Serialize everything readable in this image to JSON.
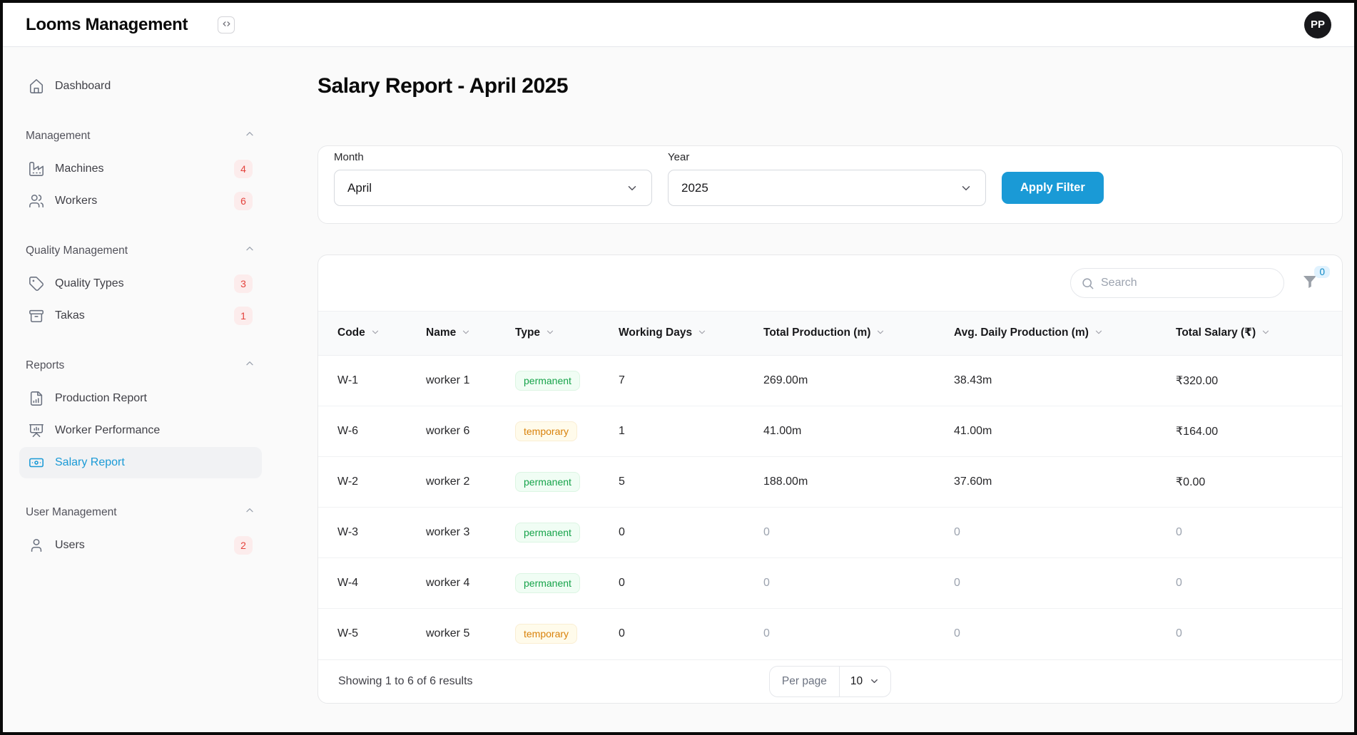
{
  "app": {
    "title": "Looms Management",
    "avatar_initials": "PP",
    "sidebar_toggle_icon": "code-brackets-icon"
  },
  "sidebar": {
    "dashboard": {
      "label": "Dashboard",
      "icon": "home-icon"
    },
    "sections": [
      {
        "label": "Management",
        "items": [
          {
            "label": "Machines",
            "badge": "4",
            "icon": "factory-icon"
          },
          {
            "label": "Workers",
            "badge": "6",
            "icon": "users-icon"
          }
        ]
      },
      {
        "label": "Quality Management",
        "items": [
          {
            "label": "Quality Types",
            "badge": "3",
            "icon": "tag-icon"
          },
          {
            "label": "Takas",
            "badge": "1",
            "icon": "archive-icon"
          }
        ]
      },
      {
        "label": "Reports",
        "items": [
          {
            "label": "Production Report",
            "icon": "file-chart-icon"
          },
          {
            "label": "Worker Performance",
            "icon": "presentation-chart-icon"
          },
          {
            "label": "Salary Report",
            "icon": "banknote-icon",
            "active": true
          }
        ]
      },
      {
        "label": "User Management",
        "items": [
          {
            "label": "Users",
            "badge": "2",
            "icon": "user-icon"
          }
        ]
      }
    ]
  },
  "main": {
    "title": "Salary Report - April 2025",
    "filter": {
      "month_label": "Month",
      "month_value": "April",
      "year_label": "Year",
      "year_value": "2025",
      "apply_label": "Apply Filter"
    },
    "search": {
      "placeholder": "Search",
      "icon": "search-icon",
      "filter_icon": "funnel-icon",
      "filter_count": "0"
    },
    "table": {
      "columns": [
        "Code",
        "Name",
        "Type",
        "Working Days",
        "Total Production (m)",
        "Avg. Daily Production (m)",
        "Total Salary (₹)"
      ],
      "rows": [
        {
          "code": "W-1",
          "name": "worker 1",
          "type": "permanent",
          "working_days": "7",
          "total_production": "269.00m",
          "avg_daily_production": "38.43m",
          "total_salary": "₹320.00",
          "zeroed": false
        },
        {
          "code": "W-6",
          "name": "worker 6",
          "type": "temporary",
          "working_days": "1",
          "total_production": "41.00m",
          "avg_daily_production": "41.00m",
          "total_salary": "₹164.00",
          "zeroed": false
        },
        {
          "code": "W-2",
          "name": "worker 2",
          "type": "permanent",
          "working_days": "5",
          "total_production": "188.00m",
          "avg_daily_production": "37.60m",
          "total_salary": "₹0.00",
          "zeroed": false
        },
        {
          "code": "W-3",
          "name": "worker 3",
          "type": "permanent",
          "working_days": "0",
          "total_production": "0",
          "avg_daily_production": "0",
          "total_salary": "0",
          "zeroed": true
        },
        {
          "code": "W-4",
          "name": "worker 4",
          "type": "permanent",
          "working_days": "0",
          "total_production": "0",
          "avg_daily_production": "0",
          "total_salary": "0",
          "zeroed": true
        },
        {
          "code": "W-5",
          "name": "worker 5",
          "type": "temporary",
          "working_days": "0",
          "total_production": "0",
          "avg_daily_production": "0",
          "total_salary": "0",
          "zeroed": true
        }
      ],
      "footer": {
        "showing": "Showing 1 to 6 of 6 results",
        "per_page_label": "Per page",
        "per_page_value": "10"
      }
    }
  },
  "colors": {
    "accent_blue": "#1a9ad6",
    "sidebar_badge_bg": "#fcecec",
    "sidebar_badge_text": "#e4423c",
    "permanent_badge_text": "#16a34a",
    "permanent_badge_bg": "#f0fdf4",
    "temporary_badge_text": "#d9820b",
    "temporary_badge_bg": "#fffbeb",
    "filter_count_bg": "#e0f2fe",
    "filter_count_text": "#0b87c4"
  }
}
